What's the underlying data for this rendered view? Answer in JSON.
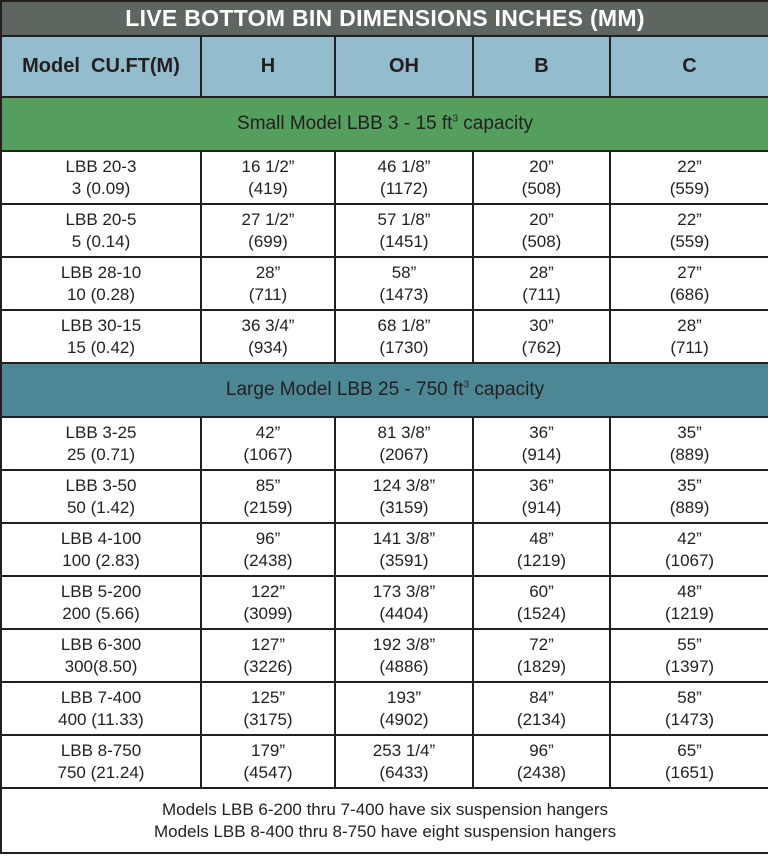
{
  "title": "LIVE BOTTOM BIN DIMENSIONS INCHES (MM)",
  "columns": [
    "Model  CU.FT(M)",
    "H",
    "OH",
    "B",
    "C"
  ],
  "colors": {
    "title_bg": "#5e6660",
    "header_bg": "#93bccd",
    "small_section_bg": "#559f5e",
    "large_section_bg": "#4c8795"
  },
  "sections": [
    {
      "label_pre": "Small Model LBB 3 - 15 ft",
      "label_sup": "3",
      "label_post": " capacity",
      "rows": [
        [
          [
            "LBB 20-3",
            "3 (0.09)"
          ],
          [
            "16 1/2”",
            "(419)"
          ],
          [
            "46 1/8”",
            "(1172)"
          ],
          [
            "20”",
            "(508)"
          ],
          [
            "22”",
            "(559)"
          ]
        ],
        [
          [
            "LBB 20-5",
            "5 (0.14)"
          ],
          [
            "27 1/2”",
            "(699)"
          ],
          [
            "57 1/8”",
            "(1451)"
          ],
          [
            "20”",
            "(508)"
          ],
          [
            "22”",
            "(559)"
          ]
        ],
        [
          [
            "LBB 28-10",
            "10 (0.28)"
          ],
          [
            "28”",
            "(711)"
          ],
          [
            "58”",
            "(1473)"
          ],
          [
            "28”",
            "(711)"
          ],
          [
            "27”",
            "(686)"
          ]
        ],
        [
          [
            "LBB 30-15",
            "15 (0.42)"
          ],
          [
            "36 3/4”",
            "(934)"
          ],
          [
            "68 1/8”",
            "(1730)"
          ],
          [
            "30”",
            "(762)"
          ],
          [
            "28”",
            "(711)"
          ]
        ]
      ]
    },
    {
      "label_pre": "Large Model LBB 25 - 750 ft",
      "label_sup": "3",
      "label_post": " capacity",
      "rows": [
        [
          [
            "LBB 3-25",
            "25 (0.71)"
          ],
          [
            "42”",
            "(1067)"
          ],
          [
            "81 3/8”",
            "(2067)"
          ],
          [
            "36”",
            "(914)"
          ],
          [
            "35”",
            "(889)"
          ]
        ],
        [
          [
            "LBB 3-50",
            "50 (1.42)"
          ],
          [
            "85”",
            "(2159)"
          ],
          [
            "124 3/8”",
            "(3159)"
          ],
          [
            "36”",
            "(914)"
          ],
          [
            "35”",
            "(889)"
          ]
        ],
        [
          [
            "LBB 4-100",
            "100 (2.83)"
          ],
          [
            "96”",
            "(2438)"
          ],
          [
            "141 3/8”",
            "(3591)"
          ],
          [
            "48”",
            "(1219)"
          ],
          [
            "42”",
            "(1067)"
          ]
        ],
        [
          [
            "LBB 5-200",
            "200 (5.66)"
          ],
          [
            "122”",
            "(3099)"
          ],
          [
            "173 3/8”",
            "(4404)"
          ],
          [
            "60”",
            "(1524)"
          ],
          [
            "48”",
            "(1219)"
          ]
        ],
        [
          [
            "LBB 6-300",
            "300(8.50)"
          ],
          [
            "127”",
            "(3226)"
          ],
          [
            "192 3/8”",
            "(4886)"
          ],
          [
            "72”",
            "(1829)"
          ],
          [
            "55”",
            "(1397)"
          ]
        ],
        [
          [
            "LBB 7-400",
            "400 (11.33)"
          ],
          [
            "125”",
            "(3175)"
          ],
          [
            "193”",
            "(4902)"
          ],
          [
            "84”",
            "(2134)"
          ],
          [
            "58”",
            "(1473)"
          ]
        ],
        [
          [
            "LBB 8-750",
            "750 (21.24)"
          ],
          [
            "179”",
            "(4547)"
          ],
          [
            "253 1/4”",
            "(6433)"
          ],
          [
            "96”",
            "(2438)"
          ],
          [
            "65”",
            "(1651)"
          ]
        ]
      ]
    }
  ],
  "footnotes": [
    "Models LBB 6-200 thru 7-400 have six suspension hangers",
    "Models LBB 8-400 thru 8-750 have eight suspension hangers"
  ]
}
